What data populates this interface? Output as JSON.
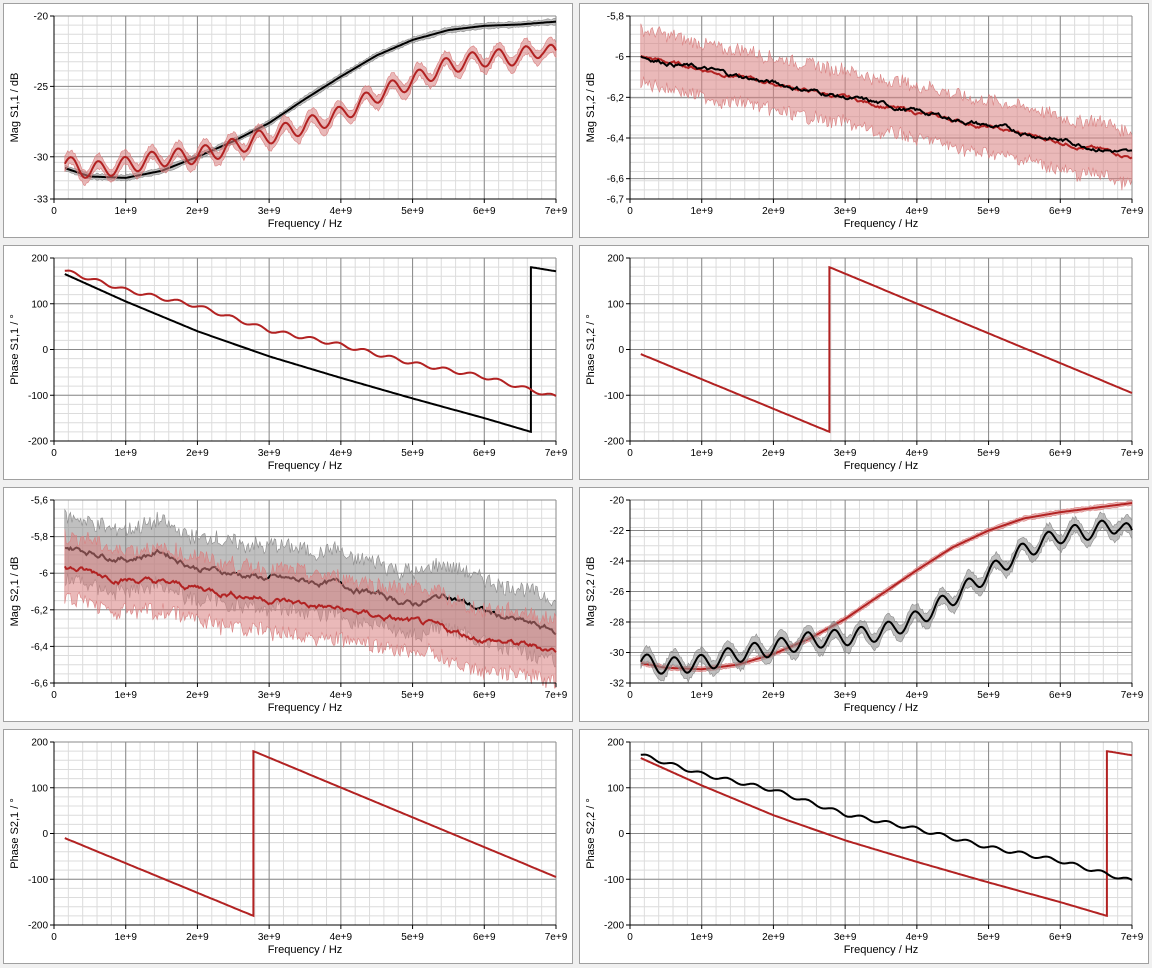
{
  "colors": {
    "black_series": "#000000",
    "red_series": "#b22222",
    "black_band": "#8c8c8c",
    "red_band": "#d98080"
  },
  "chart_data": [
    {
      "id": "s11-mag",
      "type": "line",
      "xlabel": "Frequency / Hz",
      "ylabel": "Mag S1,1 / dB",
      "xlim": [
        0,
        7000000000.0
      ],
      "ylim": [
        -33,
        -20
      ],
      "xticks": [
        "0",
        "1e+9",
        "2e+9",
        "3e+9",
        "4e+9",
        "5e+9",
        "6e+9",
        "7e+9"
      ],
      "yticks": [
        {
          "v": -20,
          "t": "-20"
        },
        {
          "v": -25,
          "t": "-25"
        },
        {
          "v": -30,
          "t": "-30"
        },
        {
          "v": -33,
          "t": "-33"
        }
      ],
      "series": [
        {
          "color": "black",
          "band": 0.2,
          "x": [
            150000000.0,
            500000000.0,
            1000000000.0,
            1500000000.0,
            2000000000.0,
            2500000000.0,
            3000000000.0,
            3500000000.0,
            4000000000.0,
            4500000000.0,
            5000000000.0,
            5500000000.0,
            6000000000.0,
            6500000000.0,
            7000000000.0
          ],
          "y": [
            -30.8,
            -31.4,
            -31.5,
            -31,
            -30,
            -28.9,
            -27.6,
            -25.9,
            -24.3,
            -22.8,
            -21.7,
            -21,
            -20.7,
            -20.6,
            -20.4
          ]
        },
        {
          "color": "red",
          "band": 0.5,
          "x": [
            150000000.0,
            500000000.0,
            1000000000.0,
            1500000000.0,
            2000000000.0,
            2500000000.0,
            3000000000.0,
            3500000000.0,
            4000000000.0,
            4500000000.0,
            5000000000.0,
            5500000000.0,
            6000000000.0,
            6500000000.0,
            6800000000.0,
            7000000000.0
          ],
          "y": [
            -30.5,
            -31,
            -30.6,
            -30.1,
            -29.9,
            -29.3,
            -28.5,
            -27.8,
            -27,
            -25.6,
            -24.6,
            -23.5,
            -23,
            -22.9,
            -22.3,
            -22.8
          ],
          "wave": 0.6
        }
      ]
    },
    {
      "id": "s12-mag",
      "type": "line",
      "xlabel": "Frequency / Hz",
      "ylabel": "Mag S1,2 / dB",
      "xlim": [
        0,
        7000000000.0
      ],
      "ylim": [
        -6.7,
        -5.8
      ],
      "xticks": [
        "0",
        "1e+9",
        "2e+9",
        "3e+9",
        "4e+9",
        "5e+9",
        "6e+9",
        "7e+9"
      ],
      "yticks": [
        {
          "v": -5.8,
          "t": "-5,8"
        },
        {
          "v": -6.0,
          "t": "-6"
        },
        {
          "v": -6.2,
          "t": "-6,2"
        },
        {
          "v": -6.4,
          "t": "-6,4"
        },
        {
          "v": -6.6,
          "t": "-6,6"
        },
        {
          "v": -6.7,
          "t": "-6,7"
        }
      ],
      "series": [
        {
          "color": "red",
          "band": 0.13,
          "x": [
            150000000.0,
            7000000000.0
          ],
          "y": [
            -6.0,
            -6.49
          ],
          "noise": 0.01
        },
        {
          "color": "black",
          "band": 0.0,
          "x": [
            150000000.0,
            7000000000.0
          ],
          "y": [
            -6.0,
            -6.48
          ],
          "noise": 0.012
        }
      ]
    },
    {
      "id": "s11-phase",
      "type": "line",
      "xlabel": "Frequency / Hz",
      "ylabel": "Phase S1,1 / °",
      "xlim": [
        0,
        7000000000.0
      ],
      "ylim": [
        -200,
        200
      ],
      "xticks": [
        "0",
        "1e+9",
        "2e+9",
        "3e+9",
        "4e+9",
        "5e+9",
        "6e+9",
        "7e+9"
      ],
      "yticks": [
        {
          "v": 200,
          "t": "200"
        },
        {
          "v": 100,
          "t": "100"
        },
        {
          "v": 0,
          "t": "0"
        },
        {
          "v": -100,
          "t": "-100"
        },
        {
          "v": -200,
          "t": "-200"
        }
      ],
      "series": [
        {
          "color": "black",
          "band": 0,
          "x": [
            150000000.0,
            1000000000.0,
            2000000000.0,
            3000000000.0,
            4000000000.0,
            5000000000.0,
            6000000000.0,
            6650000000.0,
            6650000000.0,
            7000000000.0
          ],
          "y": [
            165,
            105,
            40,
            -15,
            -62,
            -107,
            -150,
            -180,
            180,
            171
          ]
        },
        {
          "color": "red",
          "band": 0,
          "x": [
            150000000.0,
            1000000000.0,
            2000000000.0,
            3000000000.0,
            4000000000.0,
            5000000000.0,
            6000000000.0,
            7000000000.0
          ],
          "y": [
            172,
            130,
            95,
            42,
            10,
            -30,
            -60,
            -104
          ],
          "wave": 4
        }
      ]
    },
    {
      "id": "s12-phase",
      "type": "line",
      "xlabel": "Frequency / Hz",
      "ylabel": "Phase S1,2 / °",
      "xlim": [
        0,
        7000000000.0
      ],
      "ylim": [
        -200,
        200
      ],
      "xticks": [
        "0",
        "1e+9",
        "2e+9",
        "3e+9",
        "4e+9",
        "5e+9",
        "6e+9",
        "7e+9"
      ],
      "yticks": [
        {
          "v": 200,
          "t": "200"
        },
        {
          "v": 100,
          "t": "100"
        },
        {
          "v": 0,
          "t": "0"
        },
        {
          "v": -100,
          "t": "-100"
        },
        {
          "v": -200,
          "t": "-200"
        }
      ],
      "series": [
        {
          "color": "red",
          "band": 0,
          "x": [
            150000000.0,
            2780000000.0,
            2780000000.0,
            7000000000.0
          ],
          "y": [
            -10,
            -180,
            180,
            -95
          ]
        }
      ]
    },
    {
      "id": "s21-mag",
      "type": "line",
      "xlabel": "Frequency / Hz",
      "ylabel": "Mag S2,1 / dB",
      "xlim": [
        0,
        7000000000.0
      ],
      "ylim": [
        -6.6,
        -5.6
      ],
      "xticks": [
        "0",
        "1e+9",
        "2e+9",
        "3e+9",
        "4e+9",
        "5e+9",
        "6e+9",
        "7e+9"
      ],
      "yticks": [
        {
          "v": -5.6,
          "t": "-5,6"
        },
        {
          "v": -5.8,
          "t": "-5,8"
        },
        {
          "v": -6.0,
          "t": "-6"
        },
        {
          "v": -6.2,
          "t": "-6,2"
        },
        {
          "v": -6.4,
          "t": "-6,4"
        },
        {
          "v": -6.6,
          "t": "-6,6"
        }
      ],
      "series": [
        {
          "color": "black",
          "band": 0.17,
          "x": [
            150000000.0,
            1000000000.0,
            1500000000.0,
            2000000000.0,
            3000000000.0,
            4000000000.0,
            5000000000.0,
            5500000000.0,
            6000000000.0,
            7000000000.0
          ],
          "y": [
            -5.85,
            -5.92,
            -5.88,
            -5.97,
            -6.03,
            -6.06,
            -6.17,
            -6.12,
            -6.21,
            -6.32
          ],
          "noise": 0.018
        },
        {
          "color": "red",
          "band": 0.17,
          "x": [
            150000000.0,
            1000000000.0,
            2000000000.0,
            3000000000.0,
            4000000000.0,
            5000000000.0,
            6000000000.0,
            7000000000.0
          ],
          "y": [
            -5.97,
            -6.03,
            -6.08,
            -6.14,
            -6.2,
            -6.27,
            -6.36,
            -6.42
          ],
          "noise": 0.018
        }
      ]
    },
    {
      "id": "s22-mag",
      "type": "line",
      "xlabel": "Frequency / Hz",
      "ylabel": "Mag S2,2 / dB",
      "xlim": [
        0,
        7000000000.0
      ],
      "ylim": [
        -32,
        -20
      ],
      "xticks": [
        "0",
        "1e+9",
        "2e+9",
        "3e+9",
        "4e+9",
        "5e+9",
        "6e+9",
        "7e+9"
      ],
      "yticks": [
        {
          "v": -20,
          "t": "-20"
        },
        {
          "v": -22,
          "t": "-22"
        },
        {
          "v": -24,
          "t": "-24"
        },
        {
          "v": -26,
          "t": "-26"
        },
        {
          "v": -28,
          "t": "-28"
        },
        {
          "v": -30,
          "t": "-30"
        },
        {
          "v": -32,
          "t": "-32"
        }
      ],
      "series": [
        {
          "color": "red",
          "band": 0.15,
          "x": [
            150000000.0,
            500000000.0,
            1000000000.0,
            1500000000.0,
            2000000000.0,
            2500000000.0,
            3000000000.0,
            3500000000.0,
            4000000000.0,
            4500000000.0,
            5000000000.0,
            5500000000.0,
            6000000000.0,
            6500000000.0,
            7000000000.0
          ],
          "y": [
            -30.7,
            -31,
            -31.1,
            -30.8,
            -30.1,
            -29.1,
            -27.8,
            -26.2,
            -24.6,
            -23.1,
            -22,
            -21.2,
            -20.8,
            -20.5,
            -20.2
          ]
        },
        {
          "color": "black",
          "band": 0.5,
          "x": [
            150000000.0,
            500000000.0,
            1000000000.0,
            1500000000.0,
            2000000000.0,
            2500000000.0,
            3000000000.0,
            3500000000.0,
            4000000000.0,
            4500000000.0,
            5000000000.0,
            5500000000.0,
            6000000000.0,
            6500000000.0,
            6800000000.0,
            7000000000.0
          ],
          "y": [
            -30.6,
            -30.9,
            -30.7,
            -30.1,
            -29.7,
            -29.2,
            -29,
            -28.7,
            -27.8,
            -26.4,
            -24.8,
            -23.3,
            -22.3,
            -22,
            -21.6,
            -22.3
          ],
          "wave": 0.55
        }
      ]
    },
    {
      "id": "s21-phase",
      "type": "line",
      "xlabel": "Frequency / Hz",
      "ylabel": "Phase S2,1 / °",
      "xlim": [
        0,
        7000000000.0
      ],
      "ylim": [
        -200,
        200
      ],
      "xticks": [
        "0",
        "1e+9",
        "2e+9",
        "3e+9",
        "4e+9",
        "5e+9",
        "6e+9",
        "7e+9"
      ],
      "yticks": [
        {
          "v": 200,
          "t": "200"
        },
        {
          "v": 100,
          "t": "100"
        },
        {
          "v": 0,
          "t": "0"
        },
        {
          "v": -100,
          "t": "-100"
        },
        {
          "v": -200,
          "t": "-200"
        }
      ],
      "series": [
        {
          "color": "red",
          "band": 0,
          "x": [
            150000000.0,
            2780000000.0,
            2780000000.0,
            7000000000.0
          ],
          "y": [
            -10,
            -180,
            180,
            -95
          ]
        }
      ]
    },
    {
      "id": "s22-phase",
      "type": "line",
      "xlabel": "Frequency / Hz",
      "ylabel": "Phase S2,2 / °",
      "xlim": [
        0,
        7000000000.0
      ],
      "ylim": [
        -200,
        200
      ],
      "xticks": [
        "0",
        "1e+9",
        "2e+9",
        "3e+9",
        "4e+9",
        "5e+9",
        "6e+9",
        "7e+9"
      ],
      "yticks": [
        {
          "v": 200,
          "t": "200"
        },
        {
          "v": 100,
          "t": "100"
        },
        {
          "v": 0,
          "t": "0"
        },
        {
          "v": -100,
          "t": "-100"
        },
        {
          "v": -200,
          "t": "-200"
        }
      ],
      "series": [
        {
          "color": "red",
          "band": 0,
          "x": [
            150000000.0,
            1000000000.0,
            2000000000.0,
            3000000000.0,
            4000000000.0,
            5000000000.0,
            6000000000.0,
            6650000000.0,
            6650000000.0,
            7000000000.0
          ],
          "y": [
            165,
            105,
            40,
            -15,
            -62,
            -107,
            -150,
            -180,
            180,
            171
          ]
        },
        {
          "color": "black",
          "band": 0,
          "x": [
            150000000.0,
            1000000000.0,
            2000000000.0,
            3000000000.0,
            4000000000.0,
            5000000000.0,
            6000000000.0,
            7000000000.0
          ],
          "y": [
            172,
            130,
            95,
            42,
            10,
            -30,
            -60,
            -104
          ],
          "wave": 4
        }
      ]
    }
  ]
}
